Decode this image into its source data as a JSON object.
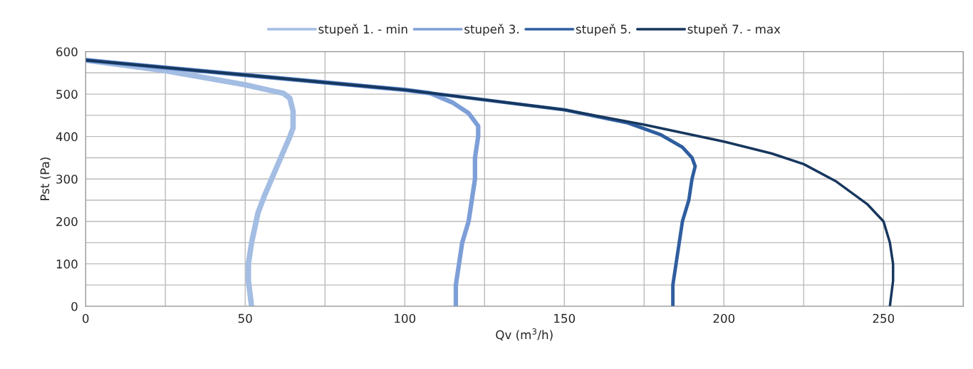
{
  "chart_data": {
    "type": "line",
    "xlabel": "Qv (m$^{3}$/h)",
    "ylabel": "Pst (Pa)",
    "xlim": [
      0,
      275
    ],
    "ylim": [
      0,
      600
    ],
    "xticks": [
      0,
      {
        "value": 25,
        "label": null
      },
      50,
      {
        "value": 75,
        "label": null
      },
      100,
      {
        "value": 125,
        "label": null
      },
      150,
      {
        "value": 175,
        "label": null
      },
      200,
      {
        "value": 225,
        "label": null
      },
      250,
      {
        "value": 275,
        "label": null
      }
    ],
    "yticks": [
      0,
      {
        "value": 50,
        "label": null
      },
      100,
      {
        "value": 150,
        "label": null
      },
      200,
      {
        "value": 250,
        "label": null
      },
      300,
      {
        "value": 350,
        "label": null
      },
      400,
      {
        "value": 450,
        "label": null
      },
      500,
      {
        "value": 550,
        "label": null
      },
      600
    ],
    "grid": true,
    "legend": "top",
    "marker": "none",
    "line_style": "solid",
    "series": [
      {
        "name": "stupeň 1. - min",
        "color": "#a3bde3",
        "x": [
          0,
          25,
          50,
          60,
          62,
          64,
          65,
          65,
          64,
          60,
          56,
          54,
          52,
          51,
          51,
          52
        ],
        "values": [
          580,
          555,
          522,
          505,
          502,
          490,
          460,
          420,
          400,
          330,
          260,
          220,
          150,
          100,
          60,
          0
        ]
      },
      {
        "name": "stupeň 3.",
        "color": "#7d9fd8",
        "x": [
          0,
          50,
          100,
          108,
          115,
          120,
          123,
          123,
          122,
          122,
          121,
          120,
          118,
          117,
          116,
          116
        ],
        "values": [
          580,
          545,
          510,
          502,
          480,
          455,
          425,
          400,
          350,
          300,
          250,
          200,
          150,
          100,
          50,
          0
        ]
      },
      {
        "name": "stupeň 5.",
        "color": "#2f5e9f",
        "x": [
          0,
          50,
          100,
          150,
          170,
          180,
          187,
          190,
          191,
          190,
          189,
          187,
          186,
          185,
          184,
          184
        ],
        "values": [
          580,
          545,
          510,
          463,
          432,
          405,
          375,
          350,
          330,
          300,
          250,
          200,
          150,
          100,
          50,
          0
        ]
      },
      {
        "name": "stupeň 7. - max",
        "color": "#17375e",
        "x": [
          0,
          50,
          100,
          150,
          175,
          200,
          215,
          225,
          235,
          245,
          250,
          252,
          253,
          253,
          252
        ],
        "values": [
          580,
          545,
          510,
          463,
          428,
          388,
          360,
          335,
          295,
          240,
          200,
          150,
          100,
          60,
          0
        ]
      }
    ]
  }
}
